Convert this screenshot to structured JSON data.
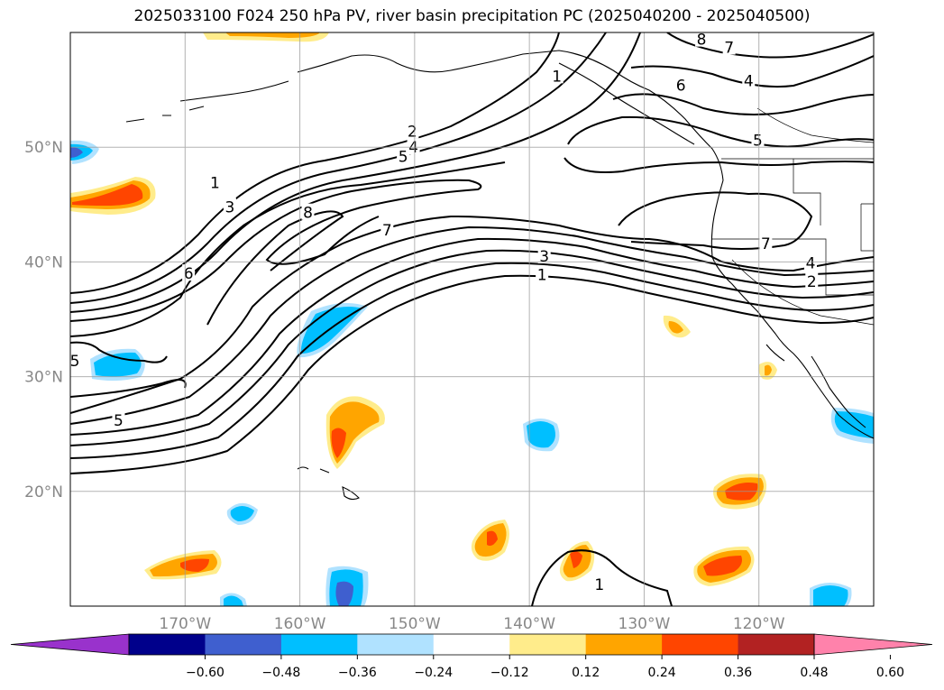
{
  "title": "2025033100 F024 250 hPa PV, river basin precipitation PC (2025040200 - 2025040500)",
  "map": {
    "extent": {
      "lon_min": -180,
      "lon_max": -110,
      "lat_min": 10,
      "lat_max": 60
    },
    "lat_ticks": [
      {
        "lat": 50,
        "label": "50°N"
      },
      {
        "lat": 40,
        "label": "40°N"
      },
      {
        "lat": 30,
        "label": "30°N"
      },
      {
        "lat": 20,
        "label": "20°N"
      }
    ],
    "lon_ticks": [
      {
        "lon": -170,
        "label": "170°W"
      },
      {
        "lon": -160,
        "label": "160°W"
      },
      {
        "lon": -150,
        "label": "150°W"
      },
      {
        "lon": -140,
        "label": "140°W"
      },
      {
        "lon": -130,
        "label": "130°W"
      },
      {
        "lon": -120,
        "label": "120°W"
      }
    ],
    "tick_label_color": "#888888",
    "grid": true,
    "contour_labels": [
      {
        "text": "1",
        "lon": -167.4,
        "lat": 46.9
      },
      {
        "text": "3",
        "lon": -166.1,
        "lat": 44.8
      },
      {
        "text": "8",
        "lon": -159.3,
        "lat": 44.3
      },
      {
        "text": "6",
        "lon": -169.7,
        "lat": 39.0
      },
      {
        "text": "2",
        "lon": -150.2,
        "lat": 51.4
      },
      {
        "text": "4",
        "lon": -150.1,
        "lat": 50.0
      },
      {
        "text": "5",
        "lon": -151.0,
        "lat": 49.2
      },
      {
        "text": "1",
        "lon": -137.6,
        "lat": 56.2
      },
      {
        "text": "7",
        "lon": -152.4,
        "lat": 42.8
      },
      {
        "text": "3",
        "lon": -138.7,
        "lat": 40.5
      },
      {
        "text": "1",
        "lon": -138.9,
        "lat": 38.9
      },
      {
        "text": "8",
        "lon": -125.0,
        "lat": 59.4
      },
      {
        "text": "7",
        "lon": -122.6,
        "lat": 58.7
      },
      {
        "text": "6",
        "lon": -126.8,
        "lat": 55.4
      },
      {
        "text": "4",
        "lon": -120.9,
        "lat": 55.8
      },
      {
        "text": "5",
        "lon": -120.1,
        "lat": 50.6
      },
      {
        "text": "7",
        "lon": -119.4,
        "lat": 41.6
      },
      {
        "text": "4",
        "lon": -115.5,
        "lat": 39.9
      },
      {
        "text": "2",
        "lon": -115.4,
        "lat": 38.3
      },
      {
        "text": "5",
        "lon": -175.8,
        "lat": 26.2
      },
      {
        "text": "5",
        "lon": -179.6,
        "lat": 31.4
      },
      {
        "text": "1",
        "lon": -133.9,
        "lat": 11.9
      }
    ]
  },
  "colorbar": {
    "ticks": [
      "−0.60",
      "−0.48",
      "−0.36",
      "−0.24",
      "−0.12",
      "0.12",
      "0.24",
      "0.36",
      "0.48",
      "0.60"
    ],
    "levels": [
      -0.6,
      -0.48,
      -0.36,
      -0.24,
      -0.12,
      0.12,
      0.24,
      0.36,
      0.48,
      0.6
    ],
    "colors": [
      "#9932cc",
      "#00008b",
      "#3f5fcf",
      "#00bfff",
      "#b0e2ff",
      "#ffffff",
      "#ffec8b",
      "#ffa500",
      "#ff4500",
      "#b22222",
      "#ff82ab"
    ],
    "extend": "both"
  }
}
